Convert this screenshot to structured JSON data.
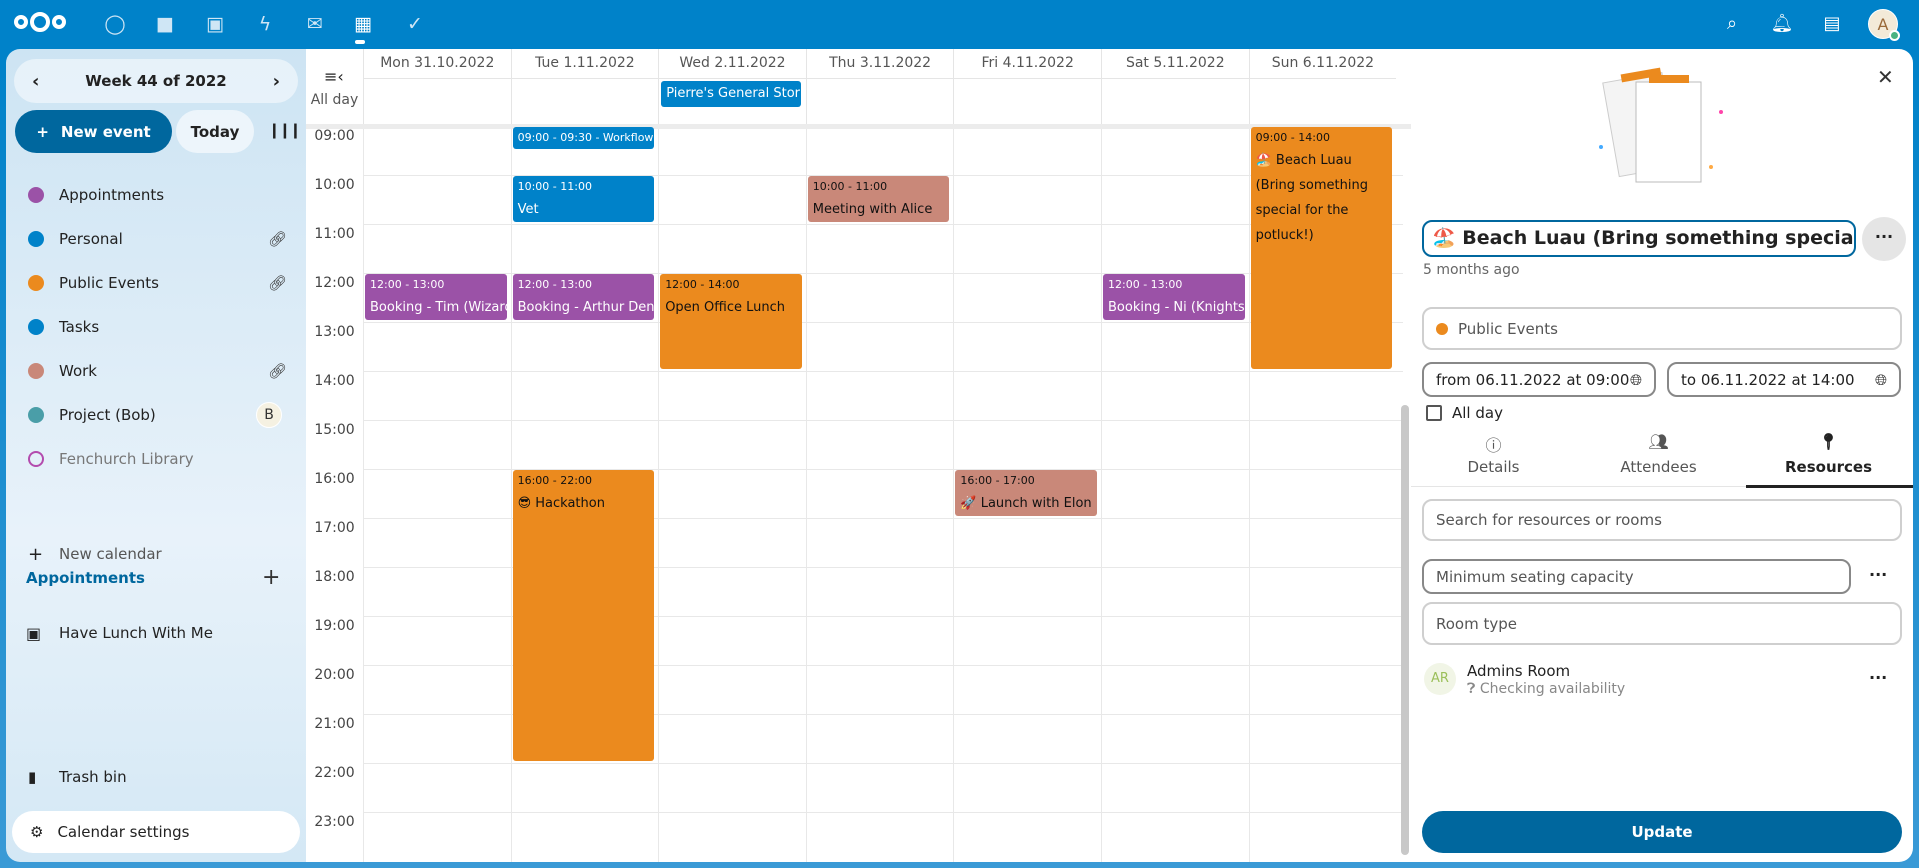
{
  "topbar": {
    "apps": [
      "dashboard-icon",
      "files-icon",
      "photos-icon",
      "activity-icon",
      "mail-icon",
      "calendar-icon",
      "tasks-icon"
    ],
    "right": [
      "search-icon",
      "notifications-icon",
      "contacts-icon"
    ],
    "avatar": "A"
  },
  "sidebar": {
    "week_label": "Week 44 of 2022",
    "new_event": "New event",
    "today": "Today",
    "calendars": [
      {
        "label": "Appointments",
        "color": "#9b52a7",
        "shared": false
      },
      {
        "label": "Personal",
        "color": "#0082c9",
        "shared": true
      },
      {
        "label": "Public Events",
        "color": "#eb8a1e",
        "shared": true
      },
      {
        "label": "Tasks",
        "color": "#0082c9",
        "shared": false
      },
      {
        "label": "Work",
        "color": "#c98879",
        "shared": true
      },
      {
        "label": "Project (Bob)",
        "color": "#4a9ea8",
        "shared_by": "B"
      },
      {
        "label": "Fenchurch Library",
        "color": "#b34bae",
        "disabled": true
      }
    ],
    "new_calendar": "New calendar",
    "appointments_section": "Appointments",
    "appointment": "Have Lunch With Me",
    "trash": "Trash bin",
    "settings": "Calendar settings"
  },
  "calendar": {
    "all_day_label": "All day",
    "days": [
      "Mon 31.10.2022",
      "Tue 1.11.2022",
      "Wed 2.11.2022",
      "Thu 3.11.2022",
      "Fri 4.11.2022",
      "Sat 5.11.2022",
      "Sun 6.11.2022"
    ],
    "hours": [
      "09:00",
      "10:00",
      "11:00",
      "12:00",
      "13:00",
      "14:00",
      "15:00",
      "16:00",
      "17:00",
      "18:00",
      "19:00",
      "20:00",
      "21:00",
      "22:00",
      "23:00"
    ],
    "all_day_events": [
      {
        "day": 2,
        "title": "Pierre's General Stor…",
        "color": "#0082c9"
      }
    ],
    "events": [
      {
        "day": 1,
        "start": 9,
        "end": 9.5,
        "time": "09:00 - 09:30 - Workflow",
        "title": "",
        "color": "#0082c9",
        "text": "#fff"
      },
      {
        "day": 1,
        "start": 10,
        "end": 11,
        "time": "10:00 - 11:00",
        "title": "Vet",
        "color": "#0082c9",
        "text": "#fff"
      },
      {
        "day": 3,
        "start": 10,
        "end": 11,
        "time": "10:00 - 11:00",
        "title": "Meeting with Alice",
        "color": "#c98879",
        "text": "#111"
      },
      {
        "day": 0,
        "start": 12,
        "end": 13,
        "time": "12:00 - 13:00",
        "title": "Booking - Tim (Wizard)",
        "color": "#9b52a7",
        "text": "#fff"
      },
      {
        "day": 1,
        "start": 12,
        "end": 13,
        "time": "12:00 - 13:00",
        "title": "Booking - Arthur Dent",
        "color": "#9b52a7",
        "text": "#fff"
      },
      {
        "day": 2,
        "start": 12,
        "end": 14,
        "time": "12:00 - 14:00",
        "title": "Open Office Lunch",
        "color": "#eb8a1e",
        "text": "#111"
      },
      {
        "day": 5,
        "start": 12,
        "end": 13,
        "time": "12:00 - 13:00",
        "title": "Booking - Ni (Knights",
        "color": "#9b52a7",
        "text": "#fff"
      },
      {
        "day": 6,
        "start": 9,
        "end": 14,
        "time": "09:00 - 14:00",
        "title": "🏖️ Beach Luau (Bring something special for the potluck!)",
        "color": "#eb8a1e",
        "text": "#111"
      },
      {
        "day": 1,
        "start": 16,
        "end": 22,
        "time": "16:00 - 22:00",
        "title": "😎 Hackathon",
        "color": "#eb8a1e",
        "text": "#111"
      },
      {
        "day": 4,
        "start": 16,
        "end": 17,
        "time": "16:00 - 17:00",
        "title": "🚀 Launch with Elon",
        "color": "#c98879",
        "text": "#111"
      }
    ]
  },
  "panel": {
    "title": "🏖️ Beach Luau (Bring something special for",
    "modified": "5 months ago",
    "calendar": "Public Events",
    "calendar_color": "#eb8a1e",
    "from": "from 06.11.2022 at 09:00",
    "to": "to 06.11.2022 at 14:00",
    "all_day": "All day",
    "all_day_checked": false,
    "tabs": [
      {
        "label": "Details",
        "icon": "info-icon"
      },
      {
        "label": "Attendees",
        "icon": "people-icon"
      },
      {
        "label": "Resources",
        "icon": "location-pin-icon",
        "active": true
      }
    ],
    "search_placeholder": "Search for resources or rooms",
    "capacity_placeholder": "Minimum seating capacity",
    "room_type_placeholder": "Room type",
    "resource": {
      "initials": "AR",
      "name": "Admins Room",
      "status": "Checking availability"
    },
    "update": "Update"
  }
}
